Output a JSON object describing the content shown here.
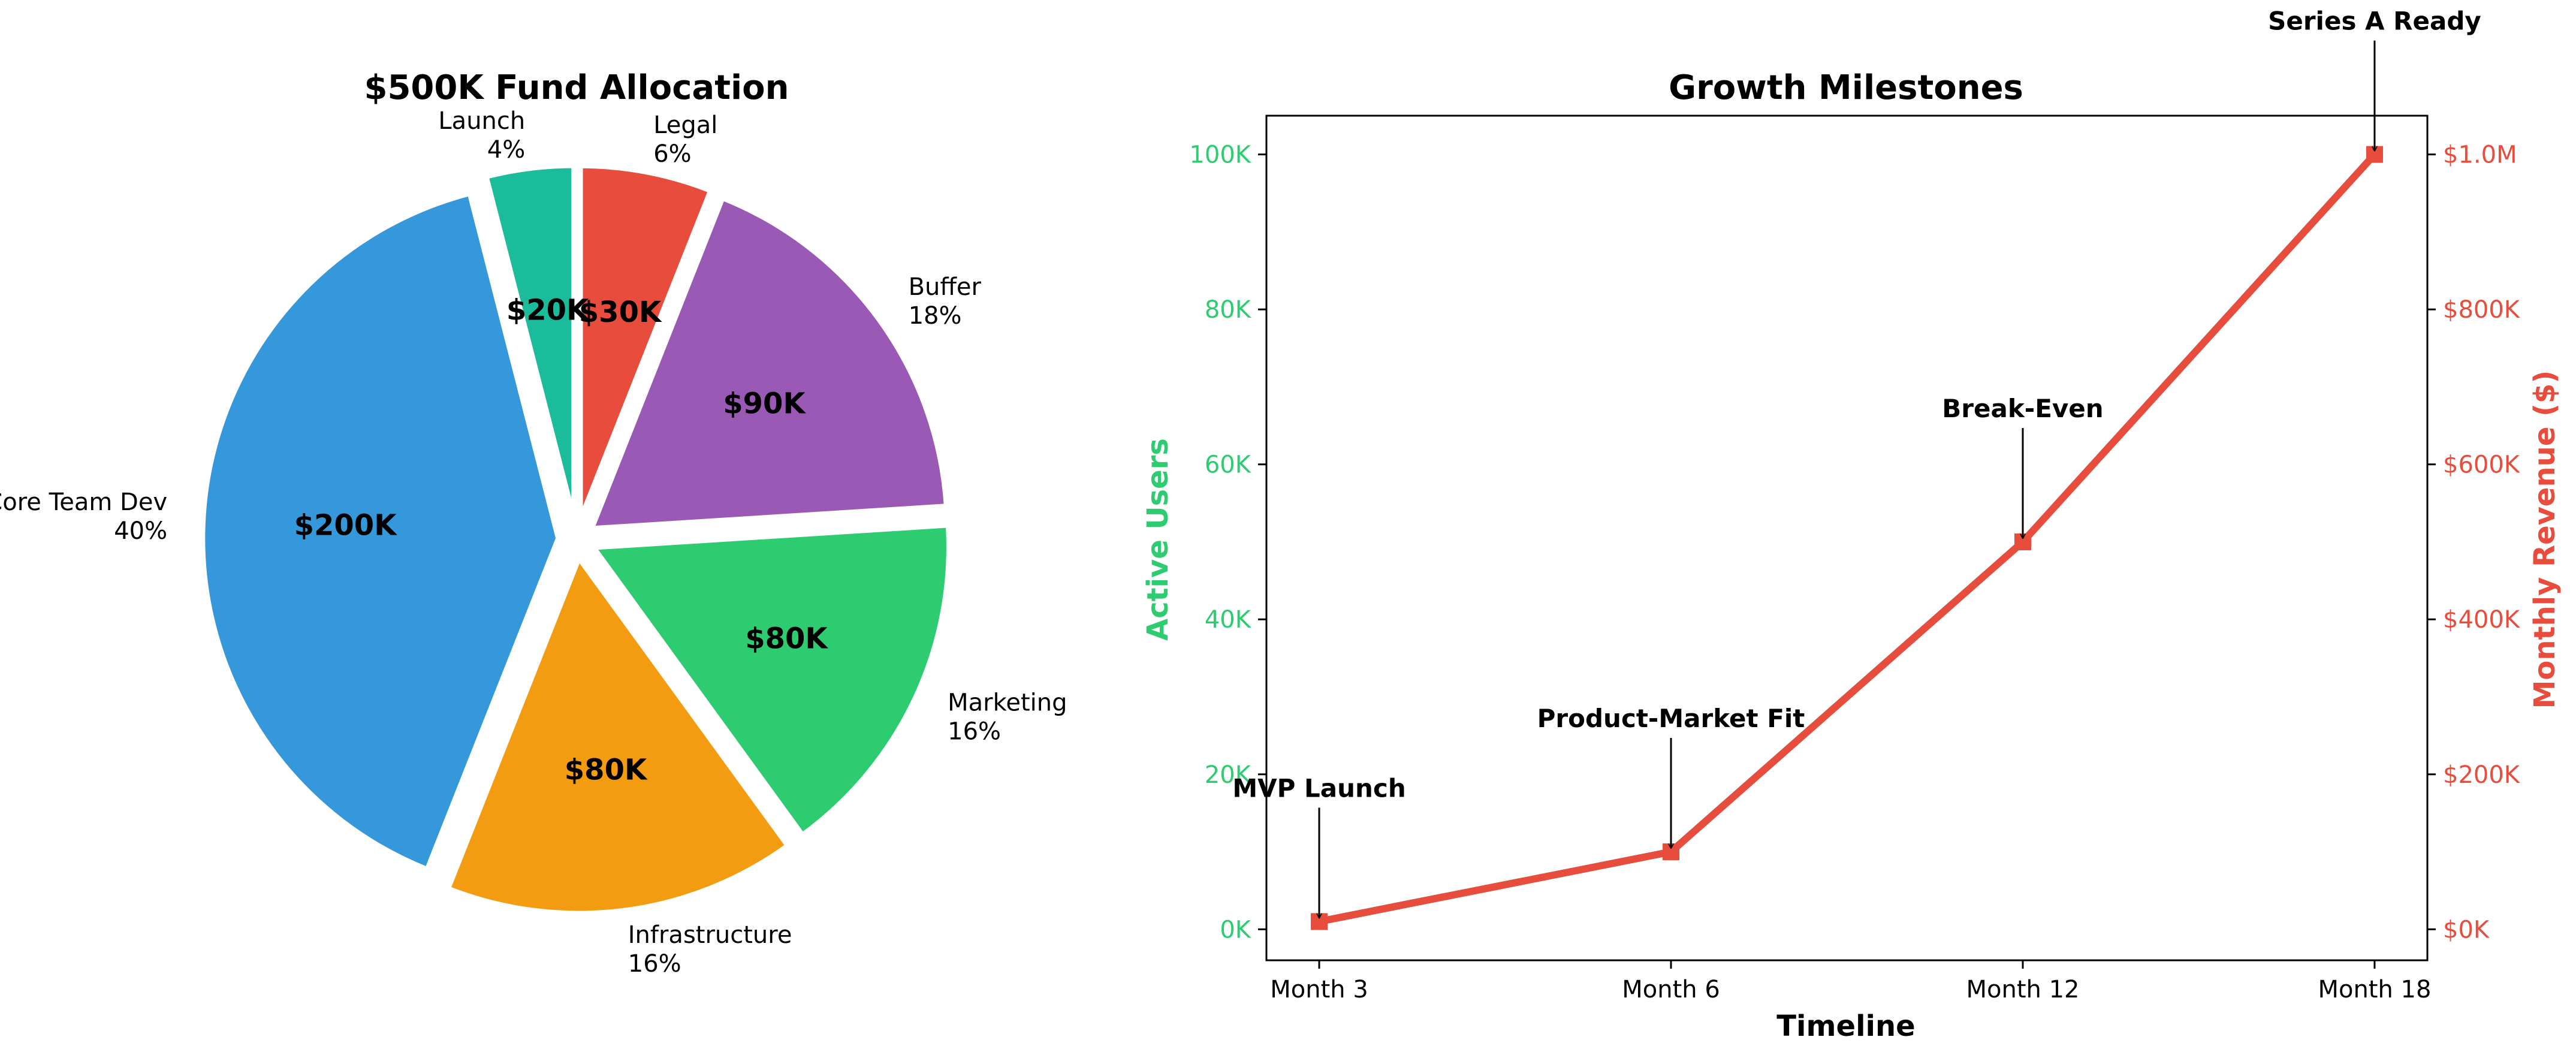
{
  "chart_data": [
    {
      "type": "pie",
      "title": "$500K Fund Allocation",
      "start_angle": "90°, counter-clockwise",
      "exploded": true,
      "edgecolor": "#ffffff",
      "slices": [
        {
          "label": "Launch",
          "percent_label": "4%",
          "value": 20,
          "value_label": "$20K",
          "color": "#1abc9c"
        },
        {
          "label": "Core Team Dev",
          "percent_label": "40%",
          "value": 200,
          "value_label": "$200K",
          "color": "#3498db"
        },
        {
          "label": "Infrastructure",
          "percent_label": "16%",
          "value": 80,
          "value_label": "$80K",
          "color": "#f39c12"
        },
        {
          "label": "Marketing",
          "percent_label": "16%",
          "value": 80,
          "value_label": "$80K",
          "color": "#2ecc71"
        },
        {
          "label": "Buffer",
          "percent_label": "18%",
          "value": 90,
          "value_label": "$90K",
          "color": "#9b59b6"
        },
        {
          "label": "Legal",
          "percent_label": "6%",
          "value": 30,
          "value_label": "$30K",
          "color": "#e74c3c"
        }
      ]
    },
    {
      "type": "line",
      "title": "Growth Milestones",
      "xlabel": "Timeline",
      "categories": [
        "Month 3",
        "Month 6",
        "Month 12",
        "Month 18"
      ],
      "y_left": {
        "label": "Active Users",
        "color": "#2ecc71",
        "ylim": [
          -4000,
          105000
        ],
        "ticks": [
          0,
          20000,
          40000,
          60000,
          80000,
          100000
        ],
        "tick_labels": [
          "0K",
          "20K",
          "40K",
          "60K",
          "80K",
          "100K"
        ]
      },
      "y_right": {
        "label": "Monthly Revenue ($)",
        "color": "#e74c3c",
        "ylim": [
          -40000,
          1050000
        ],
        "ticks": [
          0,
          200000,
          400000,
          600000,
          800000,
          1000000
        ],
        "tick_labels": [
          "$0K",
          "$200K",
          "$400K",
          "$600K",
          "$800K",
          "$1.0M"
        ]
      },
      "series": [
        {
          "axis": "left",
          "color": "#2ecc71",
          "marker": "circle",
          "values": [
            1000,
            10000,
            50000,
            100000
          ]
        },
        {
          "axis": "right",
          "color": "#e74c3c",
          "marker": "square",
          "values": [
            10000,
            100000,
            500000,
            1000000
          ]
        }
      ],
      "annotations": [
        {
          "text": "MVP Launch",
          "x_index": 0
        },
        {
          "text": "Product-Market Fit",
          "x_index": 1
        },
        {
          "text": "Break-Even",
          "x_index": 2
        },
        {
          "text": "Series A Ready",
          "x_index": 3
        }
      ]
    }
  ]
}
